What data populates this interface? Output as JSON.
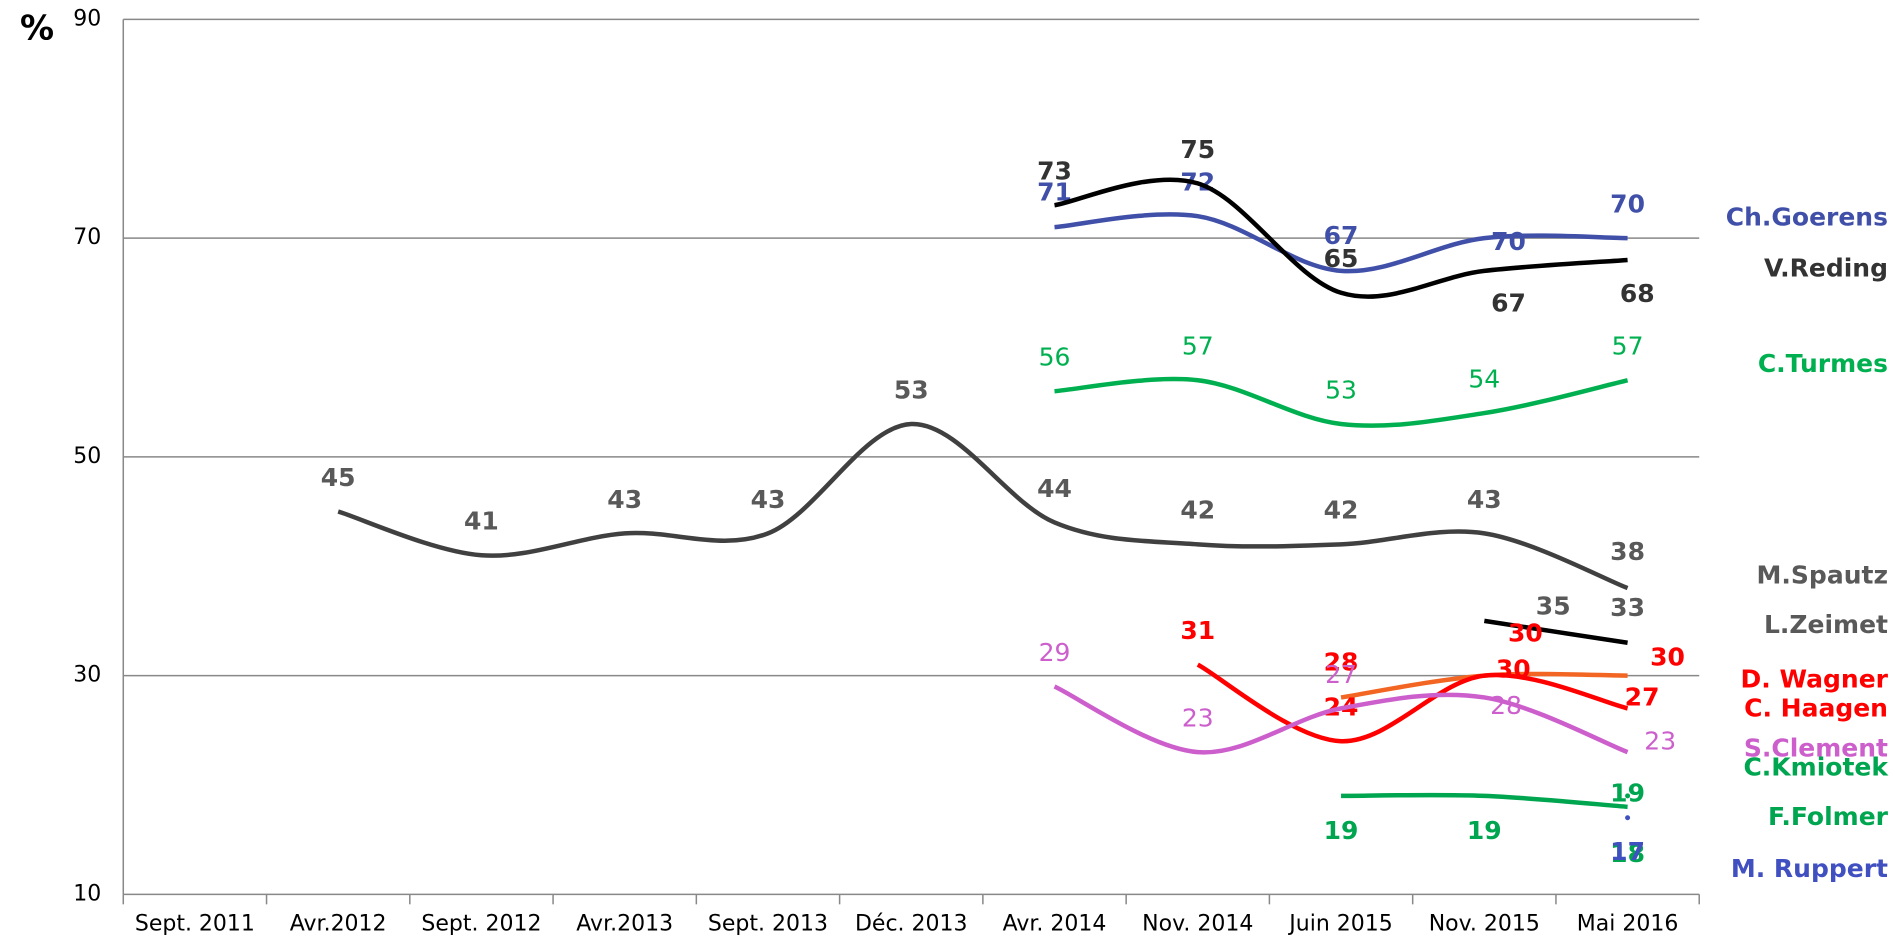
{
  "chart_data": {
    "type": "line",
    "y_label": "%",
    "categories": [
      "Sept. 2011",
      "Avr.2012",
      "Sept. 2012",
      "Avr.2013",
      "Sept. 2013",
      "Déc. 2013",
      "Avr. 2014",
      "Nov. 2014",
      "Juin 2015",
      "Nov. 2015",
      "Mai 2016"
    ],
    "ylim": [
      10,
      90
    ],
    "yticks": [
      10,
      30,
      50,
      70,
      90
    ],
    "grid": true,
    "series": [
      {
        "name": "Ch.Goerens",
        "color": "#4050a8",
        "values": [
          null,
          null,
          null,
          null,
          null,
          null,
          71,
          72,
          67,
          70,
          70
        ]
      },
      {
        "name": "V.Reding",
        "color": "#000000",
        "label_color": "#333333",
        "values": [
          null,
          null,
          null,
          null,
          null,
          null,
          73,
          75,
          65,
          67,
          68
        ]
      },
      {
        "name": "C.Turmes",
        "color": "#00b050",
        "values": [
          null,
          null,
          null,
          null,
          null,
          null,
          56,
          57,
          53,
          54,
          57
        ]
      },
      {
        "name": "M.Spautz",
        "color": "#404040",
        "label_color": "#595959",
        "values": [
          null,
          45,
          41,
          43,
          43,
          53,
          44,
          42,
          42,
          43,
          38
        ]
      },
      {
        "name": "L.Zeimet",
        "color": "#000000",
        "label_color": "#595959",
        "values": [
          null,
          null,
          null,
          null,
          null,
          null,
          null,
          null,
          null,
          35,
          33
        ]
      },
      {
        "name": "D. Wagner",
        "color": "#f26522",
        "label_color": "#ff0000",
        "values": [
          null,
          null,
          null,
          null,
          null,
          null,
          null,
          null,
          28,
          30,
          30
        ]
      },
      {
        "name": "C. Haagen",
        "color": "#ff0000",
        "values": [
          null,
          null,
          null,
          null,
          null,
          null,
          null,
          31,
          24,
          30,
          27
        ]
      },
      {
        "name": "S.Clement",
        "color": "#cc5fcc",
        "values": [
          null,
          null,
          null,
          null,
          null,
          null,
          29,
          23,
          27,
          28,
          23
        ]
      },
      {
        "name": "C.Kmiotek",
        "color": "#00a550",
        "values": [
          null,
          null,
          null,
          null,
          null,
          null,
          null,
          null,
          null,
          null,
          19
        ]
      },
      {
        "name": "F.Folmer",
        "color": "#00a550",
        "values": [
          null,
          null,
          null,
          null,
          null,
          null,
          null,
          null,
          19,
          19,
          18
        ]
      },
      {
        "name": "M. Ruppert",
        "color": "#4050c0",
        "values": [
          null,
          null,
          null,
          null,
          null,
          null,
          null,
          null,
          null,
          null,
          17
        ]
      }
    ]
  }
}
